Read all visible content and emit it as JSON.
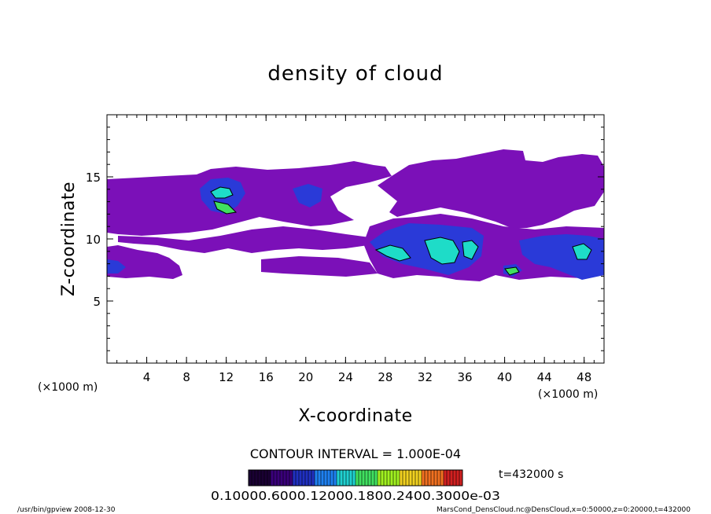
{
  "chart_data": {
    "type": "heatmap",
    "title": "density of cloud",
    "xlabel": "X-coordinate",
    "ylabel": "Z-coordinate",
    "x_unit_left": "(×1000 m)",
    "x_unit_right": "(×1000 m)",
    "xlim": [
      0,
      50
    ],
    "ylim": [
      0,
      20
    ],
    "x_ticks": [
      4,
      8,
      12,
      16,
      20,
      24,
      28,
      32,
      36,
      40,
      44,
      48
    ],
    "y_ticks": [
      5,
      10,
      15
    ],
    "grid": false,
    "contour_interval_text": "CONTOUR INTERVAL = 1.000E-04",
    "time_label": "t=432000  s",
    "colorbar_labels_text": "0.10000.6000.12000.1800.2400.3000e-03",
    "colorbar_colors": [
      "#1a0033",
      "#3a007a",
      "#2030c0",
      "#1e80f0",
      "#20d0d0",
      "#40e060",
      "#a0f020",
      "#f0d020",
      "#f07020",
      "#d02020"
    ],
    "cloud_regions": [
      {
        "x_range": [
          0,
          4
        ],
        "z_range": [
          7.0,
          10.6
        ],
        "level": "low"
      },
      {
        "x_range": [
          0,
          15
        ],
        "z_range": [
          11.0,
          15.0
        ],
        "level": "low"
      },
      {
        "x_range": [
          10,
          13.5
        ],
        "z_range": [
          12.4,
          14.8
        ],
        "level": "high"
      },
      {
        "x_range": [
          15,
          28
        ],
        "z_range": [
          9.4,
          15.8
        ],
        "level": "low"
      },
      {
        "x_range": [
          18.5,
          20.5
        ],
        "z_range": [
          12.7,
          14.8
        ],
        "level": "medium"
      },
      {
        "x_range": [
          24,
          40
        ],
        "z_range": [
          7.0,
          17.0
        ],
        "level": "low"
      },
      {
        "x_range": [
          26.5,
          37.5
        ],
        "z_range": [
          7.0,
          10.8
        ],
        "level": "high"
      },
      {
        "x_range": [
          38,
          50
        ],
        "z_range": [
          6.8,
          15.5
        ],
        "level": "low"
      },
      {
        "x_range": [
          39.5,
          50
        ],
        "z_range": [
          7.0,
          10.0
        ],
        "level": "medium"
      }
    ]
  },
  "footer": {
    "left": "/usr/bin/gpview  2008-12-30",
    "right": "MarsCond_DensCloud.nc@DensCloud,x=0:50000,z=0:20000,t=432000"
  }
}
